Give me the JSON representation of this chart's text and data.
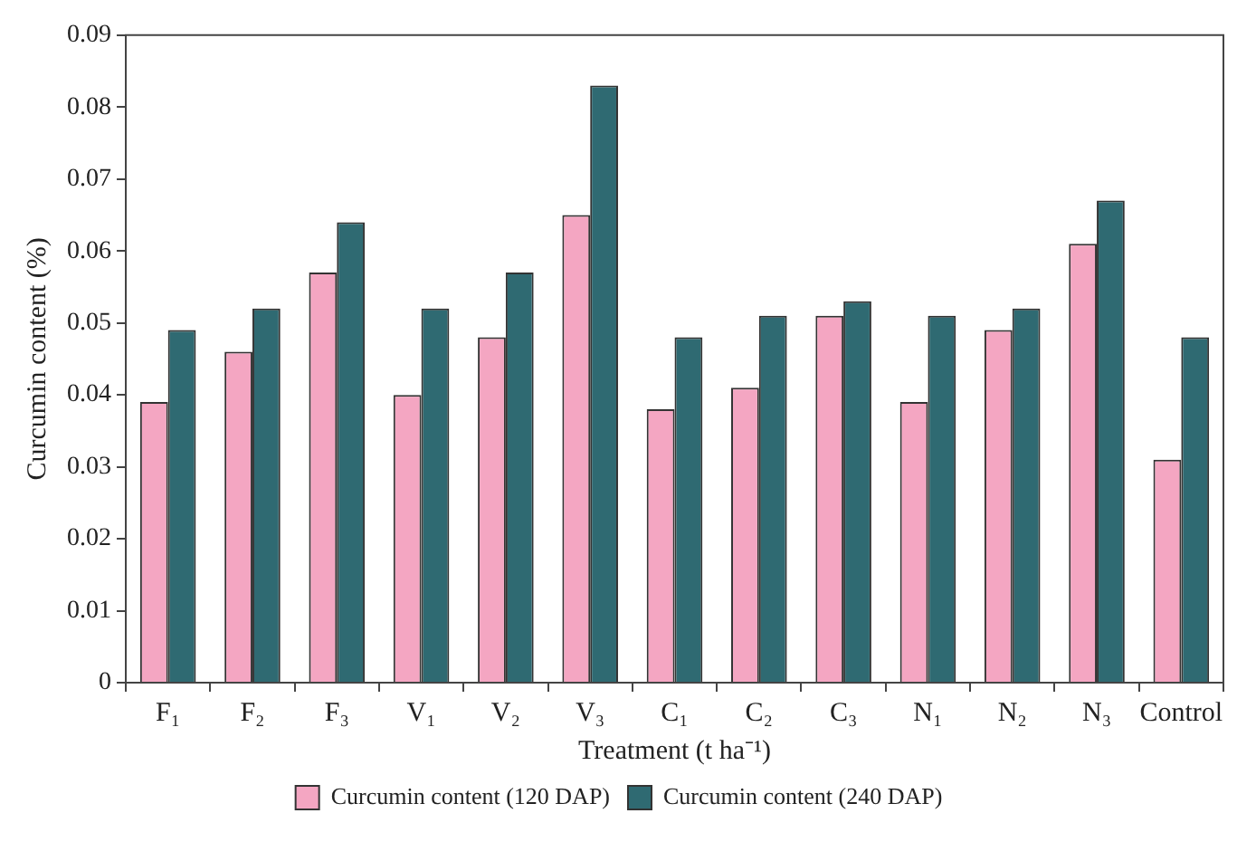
{
  "chart_data": {
    "type": "bar",
    "xlabel": "Treatment (t ha⁻¹)",
    "ylabel": "Curcumin content (%)",
    "categories": [
      "F₁",
      "F₂",
      "F₃",
      "V₁",
      "V₂",
      "V₃",
      "C₁",
      "C₂",
      "C₃",
      "N₁",
      "N₂",
      "N₃",
      "Control"
    ],
    "series": [
      {
        "name": "Curcumin content (120 DAP)",
        "color": "#f4a6c2",
        "values": [
          0.039,
          0.046,
          0.057,
          0.04,
          0.048,
          0.065,
          0.038,
          0.041,
          0.051,
          0.039,
          0.049,
          0.061,
          0.031
        ]
      },
      {
        "name": "Curcumin content (240 DAP)",
        "color": "#2f6a72",
        "values": [
          0.049,
          0.052,
          0.064,
          0.052,
          0.057,
          0.083,
          0.048,
          0.051,
          0.053,
          0.051,
          0.052,
          0.067,
          0.048
        ]
      }
    ],
    "ylim": [
      0,
      0.09
    ],
    "yticks": [
      0,
      0.01,
      0.02,
      0.03,
      0.04,
      0.05,
      0.06,
      0.07,
      0.08,
      0.09
    ],
    "grid": false,
    "legend": "bottom"
  }
}
